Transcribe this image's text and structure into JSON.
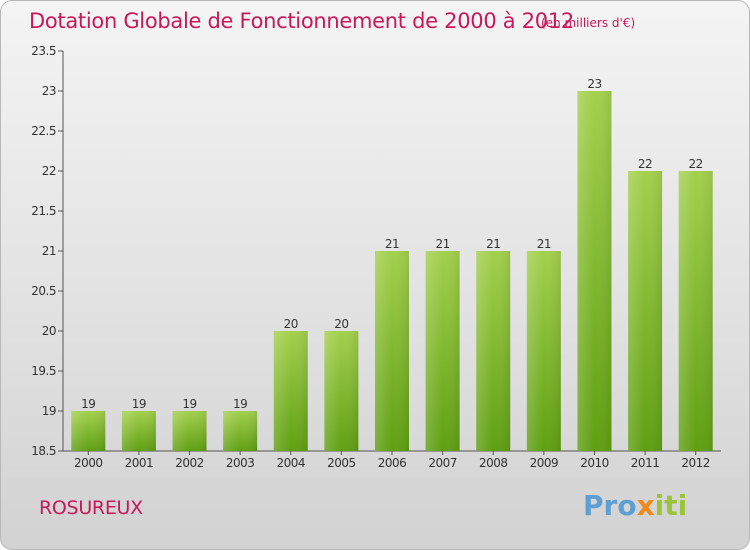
{
  "header": {
    "title": "Dotation Globale de Fonctionnement de 2000 à 2012",
    "unit": "(en milliers d'€)"
  },
  "footer": {
    "place": "ROSUREUX",
    "brand_parts": [
      "Pro",
      "x",
      "iti"
    ]
  },
  "colors": {
    "title": "#c8185a",
    "bar_light": "#a3d04d",
    "bar_dark": "#5f9f12",
    "brand_blue": "#5e9fd3",
    "brand_orange": "#f08a1c",
    "brand_green": "#9ac43a"
  },
  "chart_data": {
    "type": "bar",
    "categories": [
      "2000",
      "2001",
      "2002",
      "2003",
      "2004",
      "2005",
      "2006",
      "2007",
      "2008",
      "2009",
      "2010",
      "2011",
      "2012"
    ],
    "values": [
      19,
      19,
      19,
      19,
      20,
      20,
      21,
      21,
      21,
      21,
      23,
      22,
      22
    ],
    "value_labels": [
      "19",
      "19",
      "19",
      "19",
      "20",
      "20",
      "21",
      "21",
      "21",
      "21",
      "23",
      "22",
      "22"
    ],
    "ylim": [
      18.5,
      23.5
    ],
    "yticks": [
      18.5,
      19,
      19.5,
      20,
      20.5,
      21,
      21.5,
      22,
      22.5,
      23,
      23.5
    ],
    "ytick_labels": [
      "18.5",
      "19",
      "19.5",
      "20",
      "20.5",
      "21",
      "21.5",
      "22",
      "22.5",
      "23",
      "23.5"
    ],
    "grid": false,
    "legend": "none"
  }
}
